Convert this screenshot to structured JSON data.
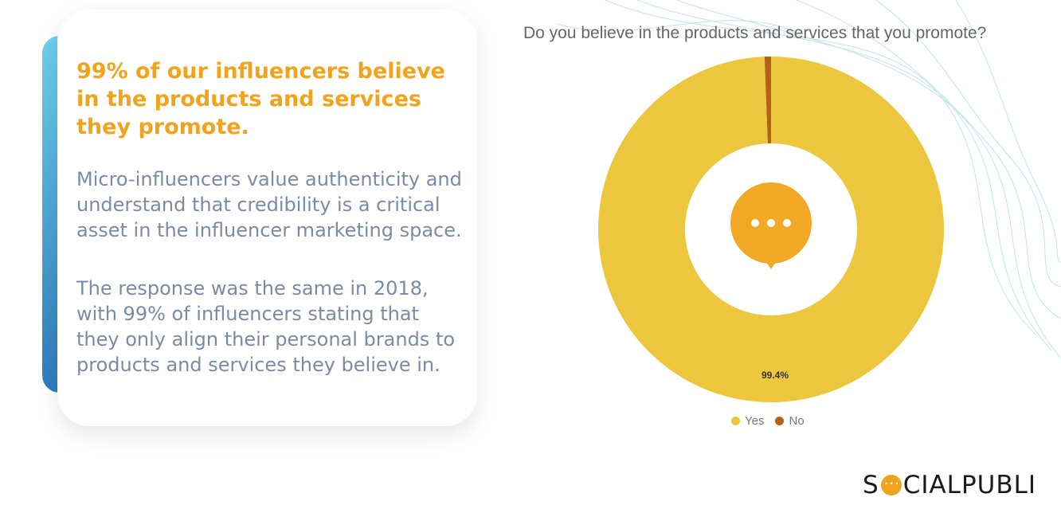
{
  "card": {
    "headline": "99% of our influencers believe in the products and services they promote.",
    "paragraph1": "Micro-influencers value authenticity and understand that credibility is a critical asset in the influencer marketing space.",
    "paragraph2": "The response was the same in 2018, with 99% of influencers stating that they only align their personal brands to products and services they believe in."
  },
  "chart_data": {
    "type": "pie",
    "donut": true,
    "title": "Do you believe in the products and services that you promote?",
    "categories": [
      "Yes",
      "No"
    ],
    "values": [
      99.4,
      0.6
    ],
    "data_labels": [
      "99.4%",
      ""
    ],
    "colors": [
      "#ecc63c",
      "#b5611a"
    ],
    "legend_placement": "bottom",
    "center_icon": "speech-bubble-ellipsis-icon"
  },
  "brand": {
    "logo_text": "SOCIALPUBLI",
    "accent": "#f0a31d"
  }
}
